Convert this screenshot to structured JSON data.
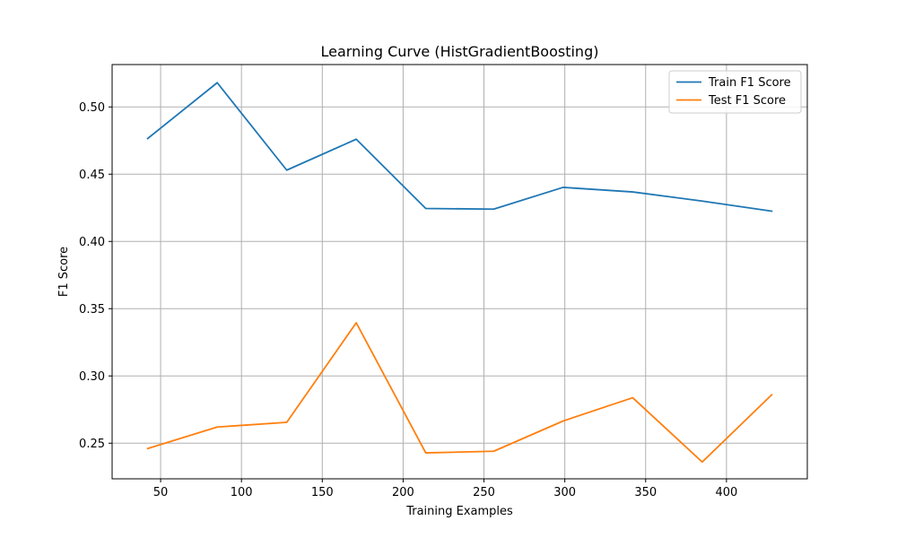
{
  "chart_data": {
    "type": "line",
    "title": "Learning Curve (HistGradientBoosting)",
    "xlabel": "Training Examples",
    "ylabel": "F1 Score",
    "xlim": [
      20,
      450
    ],
    "ylim": [
      0.2235,
      0.5315
    ],
    "xticks": [
      50,
      100,
      150,
      200,
      250,
      300,
      350,
      400
    ],
    "yticks": [
      0.25,
      0.3,
      0.35,
      0.4,
      0.45,
      0.5
    ],
    "grid": true,
    "legend_position": "top-right",
    "x": [
      42,
      85,
      128,
      171,
      214,
      256,
      299,
      342,
      385,
      428
    ],
    "series": [
      {
        "name": "Train F1 Score",
        "color": "#1f77b4",
        "values": [
          0.4765,
          0.518,
          0.453,
          0.476,
          0.4245,
          0.424,
          0.4402,
          0.4368,
          0.43,
          0.4225
        ]
      },
      {
        "name": "Test F1 Score",
        "color": "#ff7f0e",
        "values": [
          0.246,
          0.262,
          0.2655,
          0.3395,
          0.2428,
          0.244,
          0.2665,
          0.2838,
          0.236,
          0.286
        ]
      }
    ]
  }
}
